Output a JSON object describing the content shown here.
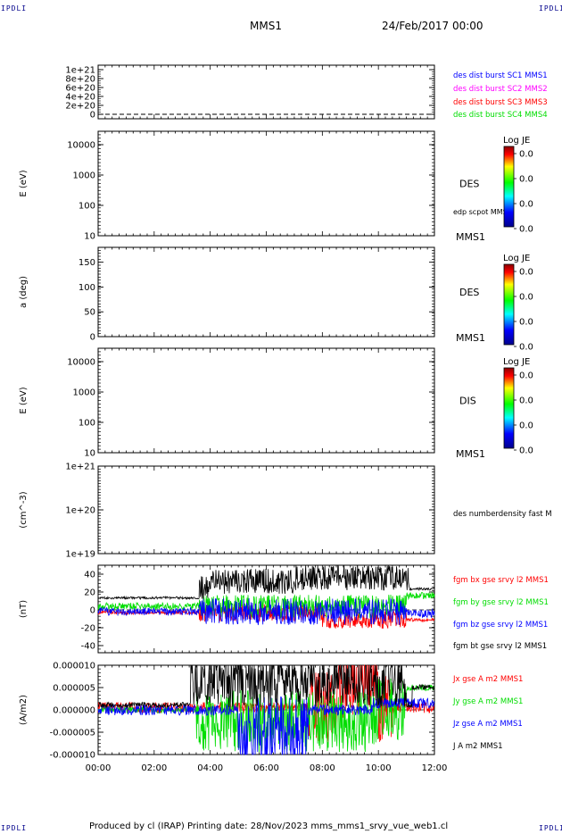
{
  "corner_labels": {
    "top_left": "IPDLI",
    "top_right": "IPDLI",
    "bottom_left": "IPDLI",
    "bottom_right": "IPDLI"
  },
  "header": {
    "spacecraft": "MMS1",
    "datetime": "24/Feb/2017 00:00"
  },
  "footer": {
    "text": "Produced by cl (IRAP)   Printing date: 28/Nov/2023   mms_mms1_srvy_vue_web1.cl"
  },
  "colors": {
    "blue": "#0000ff",
    "magenta": "#ff00ff",
    "red": "#ff0000",
    "green": "#00dd00",
    "black": "#000000"
  },
  "chart_data": [
    {
      "id": "p1",
      "type": "line",
      "yticks": [
        "1e+21",
        "8e+20",
        "6e+20",
        "4e+20",
        "2e+20",
        "0"
      ],
      "ylim": [
        0,
        1e+21
      ],
      "series": [
        {
          "name": "des dist burst SC1 MMS1",
          "color": "#0000ff"
        },
        {
          "name": "des dist burst SC2 MMS2",
          "color": "#ff00ff"
        },
        {
          "name": "des dist burst SC3 MMS3",
          "color": "#ff0000"
        },
        {
          "name": "des dist burst SC4 MMS4",
          "color": "#00dd00"
        }
      ]
    },
    {
      "id": "p2",
      "type": "heatmap",
      "ylabel": "E (eV)",
      "yscale": "log",
      "yticks": [
        "10000",
        "1000",
        "100",
        "10"
      ],
      "right_label": "DES",
      "overlay_label": "edp scpot MMS1",
      "bottom_right": "MMS1",
      "colorbar": {
        "title": "Log JE",
        "ticks": [
          "0.0",
          "0.0",
          "0.0",
          "0.0"
        ]
      }
    },
    {
      "id": "p3",
      "type": "heatmap",
      "ylabel": "a (deg)",
      "ylim": [
        0,
        180
      ],
      "yticks": [
        "150",
        "100",
        "50",
        "0"
      ],
      "right_label": "DES",
      "bottom_right": "MMS1",
      "colorbar": {
        "title": "Log JE",
        "ticks": [
          "0.0",
          "0.0",
          "0.0",
          "0.0"
        ]
      }
    },
    {
      "id": "p4",
      "type": "heatmap",
      "ylabel": "E (eV)",
      "yscale": "log",
      "yticks": [
        "10000",
        "1000",
        "100",
        "10"
      ],
      "right_label": "DIS",
      "bottom_right": "MMS1",
      "colorbar": {
        "title": "Log JE",
        "ticks": [
          "0.0",
          "0.0",
          "0.0",
          "0.0"
        ]
      }
    },
    {
      "id": "p5",
      "type": "line",
      "ylabel": "(cm^-3)",
      "yscale": "log",
      "yticks": [
        "1e+21",
        "1e+20",
        "1e+19"
      ],
      "series": [
        {
          "name": "des numberdensity fast M",
          "color": "#000000"
        }
      ]
    },
    {
      "id": "p6",
      "type": "line",
      "ylabel": "(nT)",
      "ylim": [
        -48,
        50
      ],
      "yticks": [
        "40",
        "20",
        "0",
        "-20",
        "-40"
      ],
      "series": [
        {
          "name": "fgm bx gse srvy l2 MMS1",
          "color": "#ff0000"
        },
        {
          "name": "fgm by gse srvy l2 MMS1",
          "color": "#00dd00"
        },
        {
          "name": "fgm bz gse srvy l2 MMS1",
          "color": "#0000ff"
        },
        {
          "name": "fgm bt gse srvy l2 MMS1",
          "color": "#000000"
        }
      ]
    },
    {
      "id": "p7",
      "type": "line",
      "ylabel": "(A/m2)",
      "ylim": [
        -1e-05,
        1e-05
      ],
      "yticks": [
        "0.000010",
        "0.000005",
        "0.000000",
        "-0.000005",
        "-0.000010"
      ],
      "series": [
        {
          "name": "Jx gse A m2 MMS1",
          "color": "#ff0000"
        },
        {
          "name": "Jy gse A m2 MMS1",
          "color": "#00dd00"
        },
        {
          "name": "Jz gse A m2 MMS1",
          "color": "#0000ff"
        },
        {
          "name": "J A m2 MMS1",
          "color": "#000000"
        }
      ]
    }
  ],
  "xaxis": {
    "ticks": [
      "00:00",
      "02:00",
      "04:00",
      "06:00",
      "08:00",
      "10:00",
      "12:00"
    ],
    "range_hours": [
      0,
      12
    ]
  }
}
